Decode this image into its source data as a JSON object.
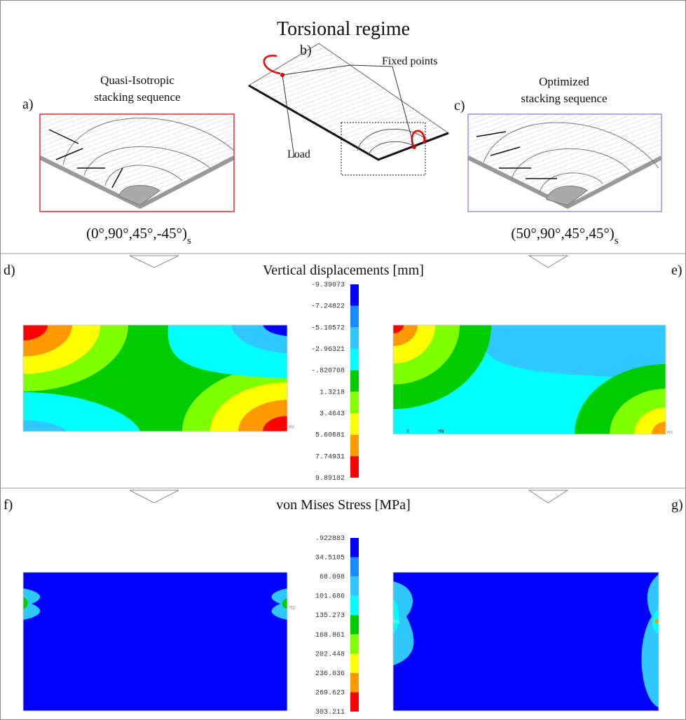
{
  "title": "Torsional regime",
  "top": {
    "a": {
      "label": "a)",
      "caption": [
        "Quasi-Isotropic",
        "stacking sequence"
      ],
      "sequence": "(0°,90°,45°,-45°)",
      "subscript": "s"
    },
    "b": {
      "label": "b)",
      "fixed": "Fixed points",
      "load": "Load"
    },
    "c": {
      "label": "c)",
      "caption": [
        "Optimized",
        "stacking sequence"
      ],
      "sequence": "(50°,90°,45°,45°)",
      "subscript": "s"
    }
  },
  "displacement": {
    "title": "Vertical displacements [mm]",
    "legend": [
      "-9.39073",
      "-7.24822",
      "-5.10572",
      "-2.96321",
      "-.820708",
      "1.3218",
      "3.4643",
      "5.60681",
      "7.74931",
      "9.89182"
    ],
    "left": {
      "label": "d)",
      "markers": [
        "MX"
      ]
    },
    "right": {
      "label": "e)",
      "markers": [
        "X",
        "MN",
        "MX"
      ]
    }
  },
  "stress": {
    "title": "von Mises Stress [MPa]",
    "legend": [
      ".922883",
      "34.5105",
      "68.098",
      "101.686",
      "135.273",
      "168.861",
      "202.448",
      "236.036",
      "269.623",
      "303.211"
    ],
    "left": {
      "label": "f)",
      "markers": [
        "MX"
      ]
    },
    "right": {
      "label": "g)",
      "markers": [
        "MX"
      ]
    }
  }
}
